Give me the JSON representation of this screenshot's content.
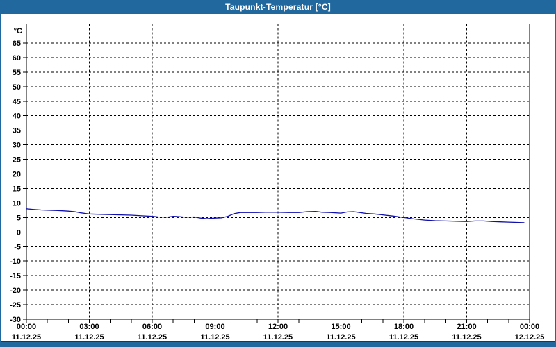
{
  "window": {
    "title": "Taupunkt-Temperatur [°C]",
    "colors": {
      "frame": "#21689e",
      "title_text": "#ffffff",
      "panel": "#ffffff",
      "grid": "#000000",
      "line": "#0f0fae",
      "panel_bottom_edge": "#0d3b60"
    }
  },
  "chart_data": {
    "type": "line",
    "title": "Taupunkt-Temperatur [°C]",
    "ylabel": "°C",
    "ylim": [
      -30,
      65
    ],
    "ytick_step": 5,
    "xlim_hours": [
      0,
      24
    ],
    "x_minor_tick_hours": 1,
    "grid": "dashed",
    "legend": "none",
    "x_major_ticks": [
      {
        "hour": 0,
        "time": "00:00",
        "date": "11.12.25"
      },
      {
        "hour": 3,
        "time": "03:00",
        "date": "11.12.25"
      },
      {
        "hour": 6,
        "time": "06:00",
        "date": "11.12.25"
      },
      {
        "hour": 9,
        "time": "09:00",
        "date": "11.12.25"
      },
      {
        "hour": 12,
        "time": "12:00",
        "date": "11.12.25"
      },
      {
        "hour": 15,
        "time": "15:00",
        "date": "11.12.25"
      },
      {
        "hour": 18,
        "time": "18:00",
        "date": "11.12.25"
      },
      {
        "hour": 21,
        "time": "21:00",
        "date": "11.12.25"
      },
      {
        "hour": 24,
        "time": "00:00",
        "date": "12.12.25"
      }
    ],
    "series": [
      {
        "name": "Taupunkt-Temperatur",
        "unit": "°C",
        "color": "#0f0fae",
        "points_hour_value": [
          [
            0,
            8.0
          ],
          [
            0.3,
            7.8
          ],
          [
            0.7,
            7.6
          ],
          [
            1,
            7.5
          ],
          [
            1.5,
            7.4
          ],
          [
            2,
            7.2
          ],
          [
            2.3,
            7.0
          ],
          [
            2.6,
            6.6
          ],
          [
            3,
            6.2
          ],
          [
            3.5,
            6.1
          ],
          [
            4,
            6.0
          ],
          [
            4.5,
            5.9
          ],
          [
            5,
            5.8
          ],
          [
            5.5,
            5.6
          ],
          [
            6,
            5.4
          ],
          [
            6.3,
            5.2
          ],
          [
            6.7,
            5.1
          ],
          [
            7,
            5.4
          ],
          [
            7.3,
            5.3
          ],
          [
            7.6,
            5.1
          ],
          [
            8,
            5.2
          ],
          [
            8.3,
            4.8
          ],
          [
            8.6,
            4.6
          ],
          [
            9,
            4.8
          ],
          [
            9.3,
            4.9
          ],
          [
            9.6,
            5.4
          ],
          [
            9.9,
            6.3
          ],
          [
            10.2,
            6.7
          ],
          [
            10.6,
            6.7
          ],
          [
            11,
            6.7
          ],
          [
            11.5,
            6.8
          ],
          [
            12,
            6.8
          ],
          [
            12.5,
            6.7
          ],
          [
            13,
            6.7
          ],
          [
            13.4,
            7.0
          ],
          [
            13.8,
            7.1
          ],
          [
            14.1,
            6.8
          ],
          [
            14.5,
            6.7
          ],
          [
            15,
            6.5
          ],
          [
            15.3,
            6.9
          ],
          [
            15.6,
            7.0
          ],
          [
            15.9,
            6.7
          ],
          [
            16.2,
            6.4
          ],
          [
            16.6,
            6.2
          ],
          [
            17,
            5.9
          ],
          [
            17.5,
            5.5
          ],
          [
            18,
            5.0
          ],
          [
            18.5,
            4.5
          ],
          [
            19,
            4.1
          ],
          [
            19.5,
            3.9
          ],
          [
            20,
            3.8
          ],
          [
            20.5,
            3.7
          ],
          [
            21,
            3.6
          ],
          [
            21.4,
            3.8
          ],
          [
            21.8,
            3.8
          ],
          [
            22.2,
            3.6
          ],
          [
            22.6,
            3.5
          ],
          [
            23,
            3.4
          ],
          [
            23.4,
            3.3
          ],
          [
            23.75,
            3.2
          ]
        ]
      }
    ]
  }
}
